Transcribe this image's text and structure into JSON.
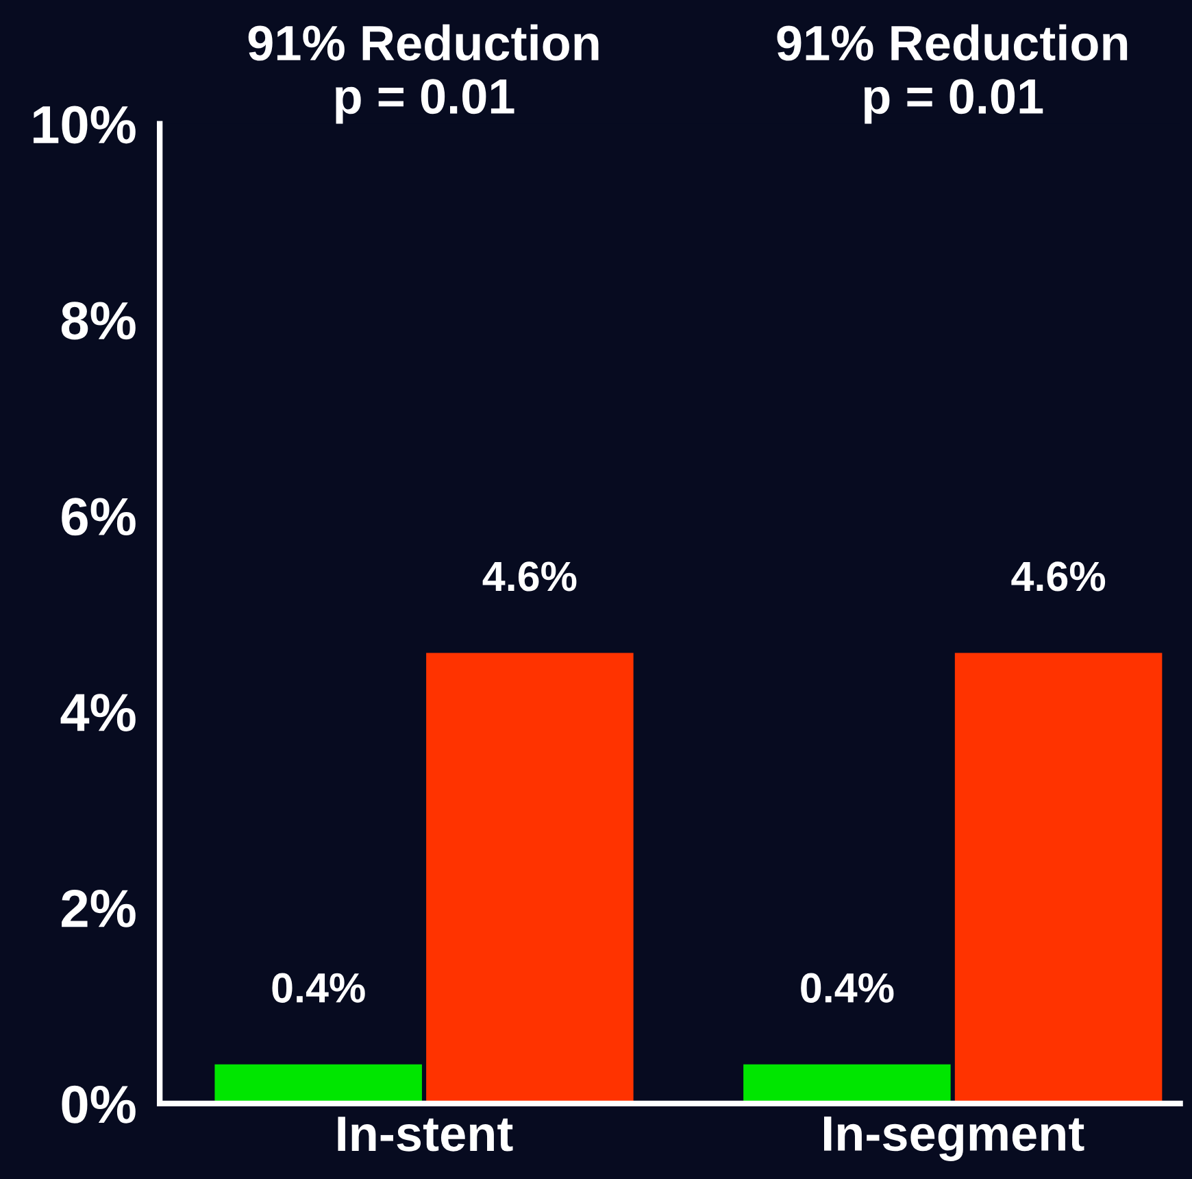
{
  "chart_data": {
    "type": "bar",
    "categories": [
      "In-stent",
      "In-segment"
    ],
    "series": [
      {
        "color": "#00e600",
        "values": [
          0.4,
          0.4
        ],
        "value_labels": [
          "0.4%",
          "0.4%"
        ]
      },
      {
        "color": "#ff3300",
        "values": [
          4.6,
          4.6
        ],
        "value_labels": [
          "4.6%",
          "4.6%"
        ]
      }
    ],
    "ylim": [
      0,
      10
    ],
    "yticks": [
      {
        "value": 0,
        "label": "0%"
      },
      {
        "value": 2,
        "label": "2%"
      },
      {
        "value": 4,
        "label": "4%"
      },
      {
        "value": 6,
        "label": "6%"
      },
      {
        "value": 8,
        "label": "8%"
      },
      {
        "value": 10,
        "label": "10%"
      }
    ],
    "annotations": [
      "91% Reduction\np = 0.01",
      "91% Reduction\np = 0.01"
    ],
    "grid": false,
    "legend": false
  }
}
